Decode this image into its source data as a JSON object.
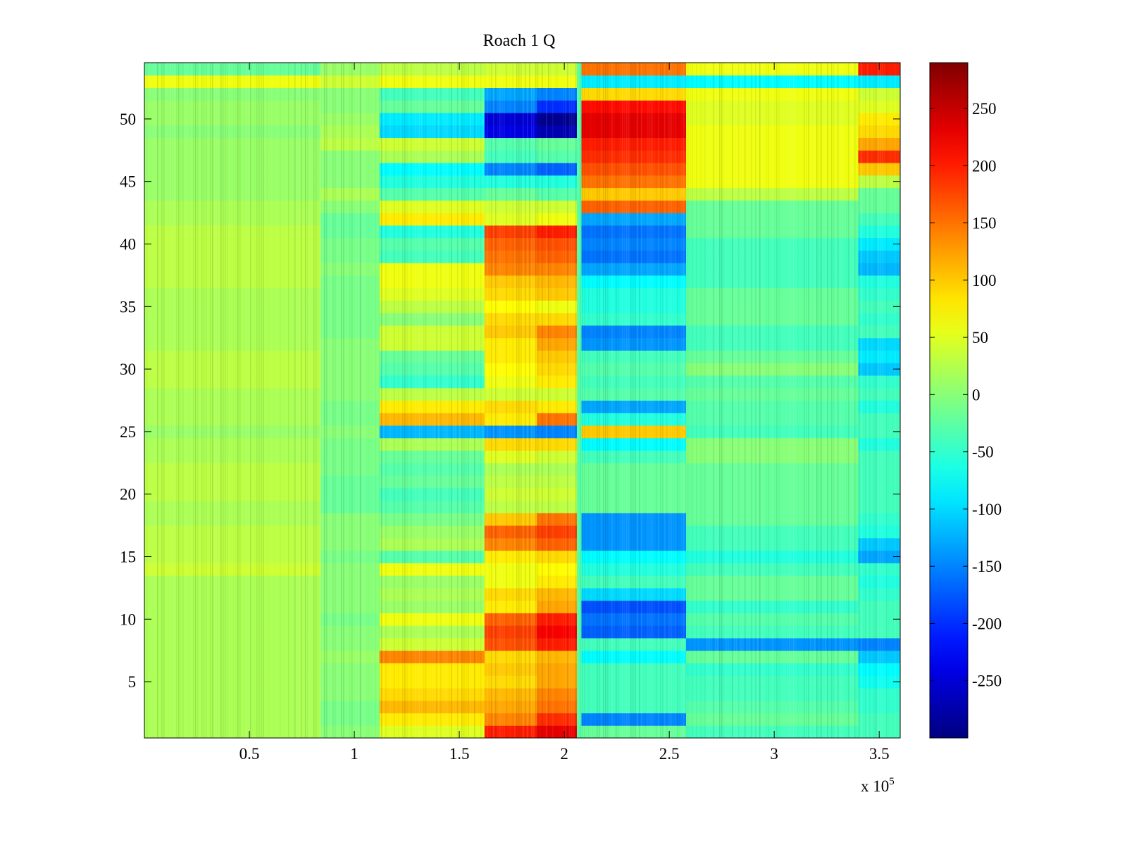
{
  "chart_data": {
    "type": "heatmap",
    "title": "Roach 1 Q",
    "xlabel": "",
    "ylabel": "",
    "xlim": [
      0,
      360000
    ],
    "ylim": [
      0.5,
      54.5
    ],
    "x_exponent_label": "x 10",
    "x_exponent_power": "5",
    "x_ticks": [
      {
        "value": 50000,
        "label": "0.5"
      },
      {
        "value": 100000,
        "label": "1"
      },
      {
        "value": 150000,
        "label": "1.5"
      },
      {
        "value": 200000,
        "label": "2"
      },
      {
        "value": 250000,
        "label": "2.5"
      },
      {
        "value": 300000,
        "label": "3"
      },
      {
        "value": 350000,
        "label": "3.5"
      }
    ],
    "y_ticks": [
      {
        "value": 5,
        "label": "5"
      },
      {
        "value": 10,
        "label": "10"
      },
      {
        "value": 15,
        "label": "15"
      },
      {
        "value": 20,
        "label": "20"
      },
      {
        "value": 25,
        "label": "25"
      },
      {
        "value": 30,
        "label": "30"
      },
      {
        "value": 35,
        "label": "35"
      },
      {
        "value": 40,
        "label": "40"
      },
      {
        "value": 45,
        "label": "45"
      },
      {
        "value": 50,
        "label": "50"
      }
    ],
    "rows": 54,
    "colormap": "jet",
    "clim": [
      -300,
      290
    ],
    "colorbar_ticks": [
      {
        "value": 250,
        "label": "250"
      },
      {
        "value": 200,
        "label": "200"
      },
      {
        "value": 150,
        "label": "150"
      },
      {
        "value": 100,
        "label": "100"
      },
      {
        "value": 50,
        "label": "50"
      },
      {
        "value": 0,
        "label": "0"
      },
      {
        "value": -50,
        "label": "-50"
      },
      {
        "value": -100,
        "label": "-100"
      },
      {
        "value": -150,
        "label": "-150"
      },
      {
        "value": -200,
        "label": "-200"
      },
      {
        "value": -250,
        "label": "-250"
      }
    ],
    "x_segments": [
      {
        "x0": 0,
        "x1": 84000,
        "name": "seg-1"
      },
      {
        "x0": 84000,
        "x1": 112000,
        "name": "seg-2"
      },
      {
        "x0": 112000,
        "x1": 162000,
        "name": "seg-3"
      },
      {
        "x0": 162000,
        "x1": 187000,
        "name": "seg-4"
      },
      {
        "x0": 187000,
        "x1": 206000,
        "name": "seg-5"
      },
      {
        "x0": 208000,
        "x1": 258000,
        "name": "seg-6"
      },
      {
        "x0": 258000,
        "x1": 340000,
        "name": "seg-7"
      },
      {
        "x0": 340000,
        "x1": 360000,
        "name": "seg-8"
      }
    ],
    "segment_row_values": {
      "seg-1": [
        20,
        20,
        20,
        20,
        20,
        20,
        20,
        20,
        20,
        20,
        20,
        20,
        20,
        40,
        30,
        30,
        30,
        20,
        20,
        30,
        30,
        30,
        20,
        20,
        10,
        20,
        20,
        20,
        30,
        30,
        30,
        20,
        20,
        20,
        20,
        20,
        30,
        30,
        30,
        30,
        30,
        20,
        20,
        10,
        10,
        10,
        10,
        10,
        0,
        10,
        10,
        0,
        60,
        -20
      ],
      "seg-2": [
        0,
        -10,
        -10,
        0,
        0,
        0,
        10,
        0,
        0,
        -10,
        0,
        0,
        0,
        0,
        -10,
        0,
        0,
        0,
        -20,
        -20,
        -20,
        -10,
        -10,
        -10,
        0,
        -10,
        -10,
        0,
        0,
        0,
        0,
        0,
        -10,
        -10,
        -10,
        -10,
        -10,
        0,
        -10,
        -10,
        -20,
        -20,
        0,
        20,
        0,
        0,
        0,
        30,
        20,
        10,
        0,
        0,
        40,
        10
      ],
      "seg-3": [
        50,
        80,
        110,
        90,
        80,
        80,
        140,
        40,
        20,
        60,
        10,
        20,
        10,
        60,
        -30,
        20,
        10,
        -10,
        -30,
        -40,
        -20,
        -30,
        -20,
        20,
        -120,
        110,
        80,
        30,
        -50,
        -30,
        -20,
        40,
        40,
        0,
        30,
        50,
        60,
        60,
        -40,
        -30,
        -60,
        80,
        50,
        -30,
        -60,
        -80,
        20,
        40,
        -100,
        -90,
        -20,
        -40,
        60,
        30
      ],
      "seg-4": [
        200,
        140,
        120,
        110,
        90,
        100,
        90,
        170,
        180,
        160,
        80,
        90,
        60,
        60,
        80,
        140,
        160,
        100,
        30,
        40,
        30,
        20,
        50,
        90,
        -140,
        80,
        90,
        40,
        60,
        70,
        80,
        80,
        100,
        90,
        70,
        90,
        100,
        140,
        150,
        160,
        180,
        50,
        40,
        -20,
        -60,
        -150,
        -40,
        -30,
        -240,
        -250,
        -150,
        -130,
        60,
        40
      ],
      "seg-5": [
        230,
        190,
        150,
        140,
        120,
        120,
        110,
        200,
        220,
        200,
        120,
        110,
        80,
        70,
        90,
        160,
        180,
        150,
        30,
        40,
        30,
        20,
        40,
        90,
        -150,
        150,
        80,
        40,
        80,
        90,
        100,
        120,
        140,
        90,
        60,
        100,
        110,
        140,
        160,
        170,
        200,
        60,
        40,
        -30,
        -60,
        -170,
        -30,
        -20,
        -270,
        -290,
        -200,
        -150,
        60,
        40
      ],
      "seg-6": [
        -20,
        -150,
        -40,
        -40,
        -40,
        -40,
        -80,
        -40,
        -170,
        -160,
        -180,
        -100,
        -40,
        -60,
        -80,
        -140,
        -140,
        -140,
        -20,
        -20,
        -20,
        -20,
        -40,
        -80,
        100,
        -60,
        -130,
        -30,
        -40,
        -30,
        -40,
        -140,
        -150,
        -50,
        -60,
        -60,
        -80,
        -130,
        -160,
        -150,
        -160,
        -130,
        160,
        100,
        150,
        170,
        190,
        200,
        230,
        230,
        210,
        90,
        -90,
        150
      ],
      "seg-7": [
        -40,
        -20,
        -30,
        -40,
        -40,
        -50,
        -20,
        -140,
        -40,
        -30,
        -50,
        -20,
        -20,
        -40,
        -60,
        -40,
        -40,
        -20,
        -20,
        -20,
        -20,
        -20,
        0,
        0,
        -40,
        -30,
        -30,
        -20,
        -30,
        0,
        -20,
        -40,
        -40,
        -20,
        -20,
        -20,
        -40,
        -40,
        -40,
        -40,
        -20,
        -20,
        -20,
        30,
        60,
        60,
        60,
        60,
        60,
        50,
        50,
        60,
        -80,
        60
      ],
      "seg-8": [
        -40,
        -40,
        -50,
        -50,
        -70,
        -80,
        -110,
        -150,
        -40,
        -40,
        -40,
        -50,
        -60,
        -50,
        -130,
        -110,
        -60,
        -50,
        -40,
        -40,
        -40,
        -40,
        -40,
        -60,
        -40,
        -40,
        -60,
        -40,
        -50,
        -110,
        -90,
        -100,
        -40,
        -50,
        -40,
        -50,
        -60,
        -120,
        -110,
        -90,
        -60,
        -40,
        -20,
        -20,
        30,
        100,
        190,
        120,
        90,
        80,
        50,
        40,
        -90,
        200
      ]
    }
  }
}
